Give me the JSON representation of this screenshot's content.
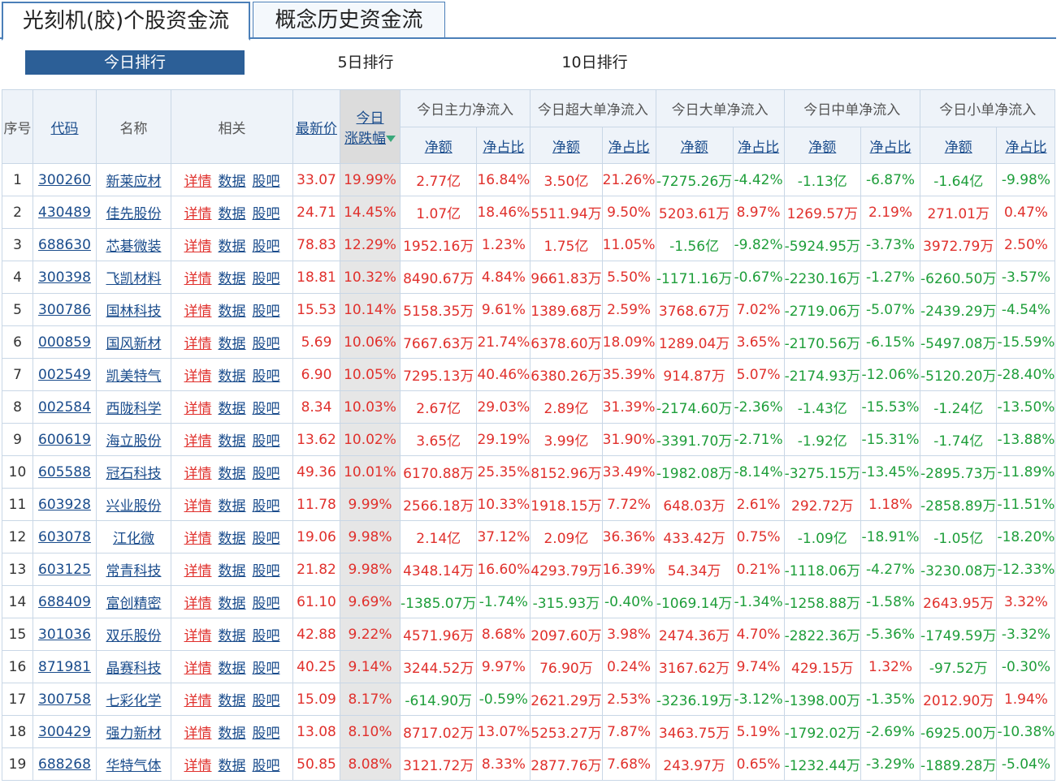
{
  "tabs": [
    {
      "label": "光刻机(胶)个股资金流",
      "active": true
    },
    {
      "label": "概念历史资金流",
      "active": false
    }
  ],
  "ranges": [
    {
      "label": "今日排行",
      "active": true
    },
    {
      "label": "5日排行",
      "active": false
    },
    {
      "label": "10日排行",
      "active": false
    }
  ],
  "headers": {
    "seq": "序号",
    "code": "代码",
    "name": "名称",
    "related": "相关",
    "price": "最新价",
    "change_line1": "今日",
    "change_line2": "涨跌幅",
    "main": "今日主力净流入",
    "super": "今日超大单净流入",
    "big": "今日大单净流入",
    "mid": "今日中单净流入",
    "small": "今日小单净流入",
    "amount": "净额",
    "ratio": "净占比"
  },
  "related_links": {
    "detail": "详情",
    "data": "数据",
    "bar": "股吧"
  },
  "rows": [
    {
      "seq": "1",
      "code": "300260",
      "name": "新莱应材",
      "price": "33.07",
      "change": "19.99%",
      "main_amt": "2.77亿",
      "main_pct": "16.84%",
      "super_amt": "3.50亿",
      "super_pct": "21.26%",
      "big_amt": "-7275.26万",
      "big_pct": "-4.42%",
      "mid_amt": "-1.13亿",
      "mid_pct": "-6.87%",
      "small_amt": "-1.64亿",
      "small_pct": "-9.98%"
    },
    {
      "seq": "2",
      "code": "430489",
      "name": "佳先股份",
      "price": "24.71",
      "change": "14.45%",
      "main_amt": "1.07亿",
      "main_pct": "18.46%",
      "super_amt": "5511.94万",
      "super_pct": "9.50%",
      "big_amt": "5203.61万",
      "big_pct": "8.97%",
      "mid_amt": "1269.57万",
      "mid_pct": "2.19%",
      "small_amt": "271.01万",
      "small_pct": "0.47%"
    },
    {
      "seq": "3",
      "code": "688630",
      "name": "芯碁微装",
      "price": "78.83",
      "change": "12.29%",
      "main_amt": "1952.16万",
      "main_pct": "1.23%",
      "super_amt": "1.75亿",
      "super_pct": "11.05%",
      "big_amt": "-1.56亿",
      "big_pct": "-9.82%",
      "mid_amt": "-5924.95万",
      "mid_pct": "-3.73%",
      "small_amt": "3972.79万",
      "small_pct": "2.50%"
    },
    {
      "seq": "4",
      "code": "300398",
      "name": "飞凯材料",
      "price": "18.81",
      "change": "10.32%",
      "main_amt": "8490.67万",
      "main_pct": "4.84%",
      "super_amt": "9661.83万",
      "super_pct": "5.50%",
      "big_amt": "-1171.16万",
      "big_pct": "-0.67%",
      "mid_amt": "-2230.16万",
      "mid_pct": "-1.27%",
      "small_amt": "-6260.50万",
      "small_pct": "-3.57%"
    },
    {
      "seq": "5",
      "code": "300786",
      "name": "国林科技",
      "price": "15.53",
      "change": "10.14%",
      "main_amt": "5158.35万",
      "main_pct": "9.61%",
      "super_amt": "1389.68万",
      "super_pct": "2.59%",
      "big_amt": "3768.67万",
      "big_pct": "7.02%",
      "mid_amt": "-2719.06万",
      "mid_pct": "-5.07%",
      "small_amt": "-2439.29万",
      "small_pct": "-4.54%"
    },
    {
      "seq": "6",
      "code": "000859",
      "name": "国风新材",
      "price": "5.69",
      "change": "10.06%",
      "main_amt": "7667.63万",
      "main_pct": "21.74%",
      "super_amt": "6378.60万",
      "super_pct": "18.09%",
      "big_amt": "1289.04万",
      "big_pct": "3.65%",
      "mid_amt": "-2170.56万",
      "mid_pct": "-6.15%",
      "small_amt": "-5497.08万",
      "small_pct": "-15.59%"
    },
    {
      "seq": "7",
      "code": "002549",
      "name": "凯美特气",
      "price": "6.90",
      "change": "10.05%",
      "main_amt": "7295.13万",
      "main_pct": "40.46%",
      "super_amt": "6380.26万",
      "super_pct": "35.39%",
      "big_amt": "914.87万",
      "big_pct": "5.07%",
      "mid_amt": "-2174.93万",
      "mid_pct": "-12.06%",
      "small_amt": "-5120.20万",
      "small_pct": "-28.40%"
    },
    {
      "seq": "8",
      "code": "002584",
      "name": "西陇科学",
      "price": "8.34",
      "change": "10.03%",
      "main_amt": "2.67亿",
      "main_pct": "29.03%",
      "super_amt": "2.89亿",
      "super_pct": "31.39%",
      "big_amt": "-2174.60万",
      "big_pct": "-2.36%",
      "mid_amt": "-1.43亿",
      "mid_pct": "-15.53%",
      "small_amt": "-1.24亿",
      "small_pct": "-13.50%"
    },
    {
      "seq": "9",
      "code": "600619",
      "name": "海立股份",
      "price": "13.62",
      "change": "10.02%",
      "main_amt": "3.65亿",
      "main_pct": "29.19%",
      "super_amt": "3.99亿",
      "super_pct": "31.90%",
      "big_amt": "-3391.70万",
      "big_pct": "-2.71%",
      "mid_amt": "-1.92亿",
      "mid_pct": "-15.31%",
      "small_amt": "-1.74亿",
      "small_pct": "-13.88%"
    },
    {
      "seq": "10",
      "code": "605588",
      "name": "冠石科技",
      "price": "49.36",
      "change": "10.01%",
      "main_amt": "6170.88万",
      "main_pct": "25.35%",
      "super_amt": "8152.96万",
      "super_pct": "33.49%",
      "big_amt": "-1982.08万",
      "big_pct": "-8.14%",
      "mid_amt": "-3275.15万",
      "mid_pct": "-13.45%",
      "small_amt": "-2895.73万",
      "small_pct": "-11.89%"
    },
    {
      "seq": "11",
      "code": "603928",
      "name": "兴业股份",
      "price": "11.78",
      "change": "9.99%",
      "main_amt": "2566.18万",
      "main_pct": "10.33%",
      "super_amt": "1918.15万",
      "super_pct": "7.72%",
      "big_amt": "648.03万",
      "big_pct": "2.61%",
      "mid_amt": "292.72万",
      "mid_pct": "1.18%",
      "small_amt": "-2858.89万",
      "small_pct": "-11.51%"
    },
    {
      "seq": "12",
      "code": "603078",
      "name": "江化微",
      "price": "19.06",
      "change": "9.98%",
      "main_amt": "2.14亿",
      "main_pct": "37.12%",
      "super_amt": "2.09亿",
      "super_pct": "36.36%",
      "big_amt": "433.42万",
      "big_pct": "0.75%",
      "mid_amt": "-1.09亿",
      "mid_pct": "-18.91%",
      "small_amt": "-1.05亿",
      "small_pct": "-18.20%"
    },
    {
      "seq": "13",
      "code": "603125",
      "name": "常青科技",
      "price": "21.82",
      "change": "9.98%",
      "main_amt": "4348.14万",
      "main_pct": "16.60%",
      "super_amt": "4293.79万",
      "super_pct": "16.39%",
      "big_amt": "54.34万",
      "big_pct": "0.21%",
      "mid_amt": "-1118.06万",
      "mid_pct": "-4.27%",
      "small_amt": "-3230.08万",
      "small_pct": "-12.33%"
    },
    {
      "seq": "14",
      "code": "688409",
      "name": "富创精密",
      "price": "61.10",
      "change": "9.69%",
      "main_amt": "-1385.07万",
      "main_pct": "-1.74%",
      "super_amt": "-315.93万",
      "super_pct": "-0.40%",
      "big_amt": "-1069.14万",
      "big_pct": "-1.34%",
      "mid_amt": "-1258.88万",
      "mid_pct": "-1.58%",
      "small_amt": "2643.95万",
      "small_pct": "3.32%"
    },
    {
      "seq": "15",
      "code": "301036",
      "name": "双乐股份",
      "price": "42.88",
      "change": "9.22%",
      "main_amt": "4571.96万",
      "main_pct": "8.68%",
      "super_amt": "2097.60万",
      "super_pct": "3.98%",
      "big_amt": "2474.36万",
      "big_pct": "4.70%",
      "mid_amt": "-2822.36万",
      "mid_pct": "-5.36%",
      "small_amt": "-1749.59万",
      "small_pct": "-3.32%"
    },
    {
      "seq": "16",
      "code": "871981",
      "name": "晶赛科技",
      "price": "40.25",
      "change": "9.14%",
      "main_amt": "3244.52万",
      "main_pct": "9.97%",
      "super_amt": "76.90万",
      "super_pct": "0.24%",
      "big_amt": "3167.62万",
      "big_pct": "9.74%",
      "mid_amt": "429.15万",
      "mid_pct": "1.32%",
      "small_amt": "-97.52万",
      "small_pct": "-0.30%"
    },
    {
      "seq": "17",
      "code": "300758",
      "name": "七彩化学",
      "price": "15.09",
      "change": "8.17%",
      "main_amt": "-614.90万",
      "main_pct": "-0.59%",
      "super_amt": "2621.29万",
      "super_pct": "2.53%",
      "big_amt": "-3236.19万",
      "big_pct": "-3.12%",
      "mid_amt": "-1398.00万",
      "mid_pct": "-1.35%",
      "small_amt": "2012.90万",
      "small_pct": "1.94%"
    },
    {
      "seq": "18",
      "code": "300429",
      "name": "强力新材",
      "price": "13.08",
      "change": "8.10%",
      "main_amt": "8717.02万",
      "main_pct": "13.07%",
      "super_amt": "5253.27万",
      "super_pct": "7.87%",
      "big_amt": "3463.75万",
      "big_pct": "5.19%",
      "mid_amt": "-1792.02万",
      "mid_pct": "-2.69%",
      "small_amt": "-6925.00万",
      "small_pct": "-10.38%"
    },
    {
      "seq": "19",
      "code": "688268",
      "name": "华特气体",
      "price": "50.85",
      "change": "8.08%",
      "main_amt": "3121.72万",
      "main_pct": "8.33%",
      "super_amt": "2877.76万",
      "super_pct": "7.68%",
      "big_amt": "243.97万",
      "big_pct": "0.65%",
      "mid_amt": "-1232.44万",
      "mid_pct": "-3.29%",
      "small_amt": "-1889.28万",
      "small_pct": "-5.04%"
    }
  ],
  "colors": {
    "up": "#e0302c",
    "down": "#1e9e3a",
    "link": "#1a4c8c",
    "accent": "#2c5f97"
  }
}
